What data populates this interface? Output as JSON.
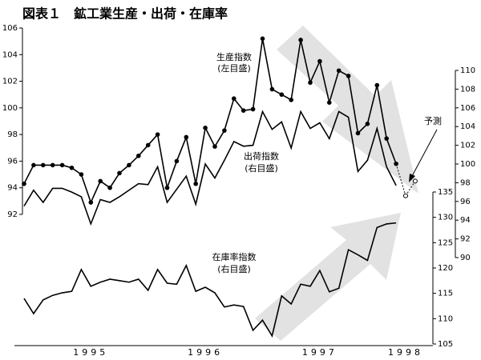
{
  "chart_data": {
    "type": "line",
    "title": "図表１　鉱工業生産・出荷・在庫率",
    "categories": [
      null,
      null,
      null,
      null,
      null,
      null,
      null,
      "1995",
      null,
      null,
      null,
      null,
      null,
      null,
      null,
      null,
      null,
      null,
      null,
      "1996",
      null,
      null,
      null,
      null,
      null,
      null,
      null,
      null,
      null,
      null,
      null,
      "1997",
      null,
      null,
      null,
      null,
      null,
      null,
      null,
      null,
      "1998",
      null
    ],
    "series": [
      {
        "name": "生産指数",
        "scale_label": "(左目盛)",
        "axis": "y",
        "color": "#000000",
        "markers": true,
        "values": [
          94.3,
          95.7,
          95.7,
          95.7,
          95.7,
          95.5,
          95.0,
          92.9,
          94.5,
          94.0,
          95.1,
          95.7,
          96.4,
          97.2,
          98.0,
          94.0,
          96.0,
          97.8,
          94.3,
          98.5,
          97.1,
          98.3,
          100.7,
          99.8,
          99.9,
          105.2,
          101.4,
          101.0,
          100.6,
          105.1,
          101.9,
          103.5,
          100.4,
          102.8,
          102.4,
          98.1,
          98.8,
          101.7,
          97.7,
          95.8,
          null,
          null
        ]
      },
      {
        "name": "出荷指数",
        "scale_label": "(右目盛)",
        "axis": "y2",
        "color": "#000000",
        "markers": false,
        "values": [
          95.5,
          97.2,
          95.9,
          97.4,
          97.4,
          97.0,
          96.5,
          93.6,
          96.2,
          95.9,
          96.5,
          97.2,
          97.9,
          97.8,
          99.7,
          95.9,
          97.3,
          98.7,
          95.7,
          100.0,
          98.5,
          100.4,
          102.4,
          101.9,
          102.0,
          105.6,
          103.7,
          104.5,
          101.7,
          105.6,
          103.8,
          104.4,
          102.7,
          105.6,
          105.0,
          99.2,
          100.4,
          103.8,
          99.7,
          97.7,
          null,
          null
        ]
      },
      {
        "name": "在庫率指数",
        "scale_label": "(右目盛)",
        "axis": "y3",
        "color": "#000000",
        "markers": false,
        "values": [
          114.0,
          111.0,
          113.7,
          114.6,
          115.1,
          115.4,
          119.7,
          116.4,
          117.2,
          117.8,
          117.5,
          117.2,
          117.8,
          115.6,
          119.7,
          117.0,
          116.8,
          120.5,
          115.4,
          116.2,
          115.1,
          112.3,
          112.7,
          112.4,
          107.7,
          109.7,
          106.6,
          114.5,
          112.9,
          116.8,
          116.4,
          119.5,
          115.3,
          116.0,
          123.6,
          122.6,
          121.5,
          128.0,
          128.7,
          128.9,
          null,
          null
        ]
      }
    ],
    "forecast": {
      "label": "予測",
      "axis": "y",
      "values": [
        null,
        null,
        null,
        null,
        null,
        null,
        null,
        null,
        null,
        null,
        null,
        null,
        null,
        null,
        null,
        null,
        null,
        null,
        null,
        null,
        null,
        null,
        null,
        null,
        null,
        null,
        null,
        null,
        null,
        null,
        null,
        null,
        null,
        null,
        null,
        null,
        null,
        null,
        null,
        null,
        93.4,
        94.5
      ]
    },
    "ylim": [
      92,
      106
    ],
    "yticks": [
      92,
      94,
      96,
      98,
      100,
      102,
      104,
      106
    ],
    "y2lim": [
      90,
      110
    ],
    "y2ticks": [
      90,
      92,
      94,
      96,
      98,
      100,
      102,
      104,
      106,
      108,
      110
    ],
    "y3lim": [
      105,
      135
    ],
    "y3ticks": [
      105,
      110,
      115,
      120,
      125,
      130,
      135
    ]
  }
}
